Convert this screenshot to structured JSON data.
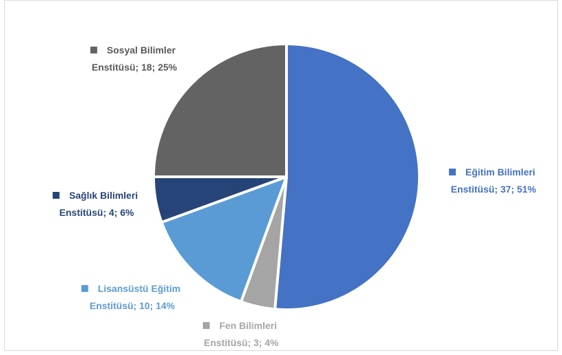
{
  "chart_data": {
    "type": "pie",
    "title": "",
    "start_angle_deg": 0,
    "direction": "clockwise",
    "slices": [
      {
        "label_line1": "Eğitim Bilimleri",
        "label_line2": "Enstitüsü; 37; 51%",
        "value": 37,
        "percent": 51,
        "color": "#4472c4",
        "label_color": "#4472c4"
      },
      {
        "label_line1": "Fen Bilimleri",
        "label_line2": "Enstitüsü; 3; 4%",
        "value": 3,
        "percent": 4,
        "color": "#a5a5a5",
        "label_color": "#a5a5a5"
      },
      {
        "label_line1": "Lisansüstü Eğitim",
        "label_line2": "Enstitüsü; 10; 14%",
        "value": 10,
        "percent": 14,
        "color": "#5b9bd5",
        "label_color": "#5b9bd5"
      },
      {
        "label_line1": "Sağlık Bilimleri",
        "label_line2": "Enstitüsü; 4; 6%",
        "value": 4,
        "percent": 6,
        "color": "#264478",
        "label_color": "#264478"
      },
      {
        "label_line1": "Sosyal Bilimler",
        "label_line2": "Enstitüsü; 18; 25%",
        "value": 18,
        "percent": 25,
        "color": "#636363",
        "label_color": "#595959"
      }
    ]
  }
}
